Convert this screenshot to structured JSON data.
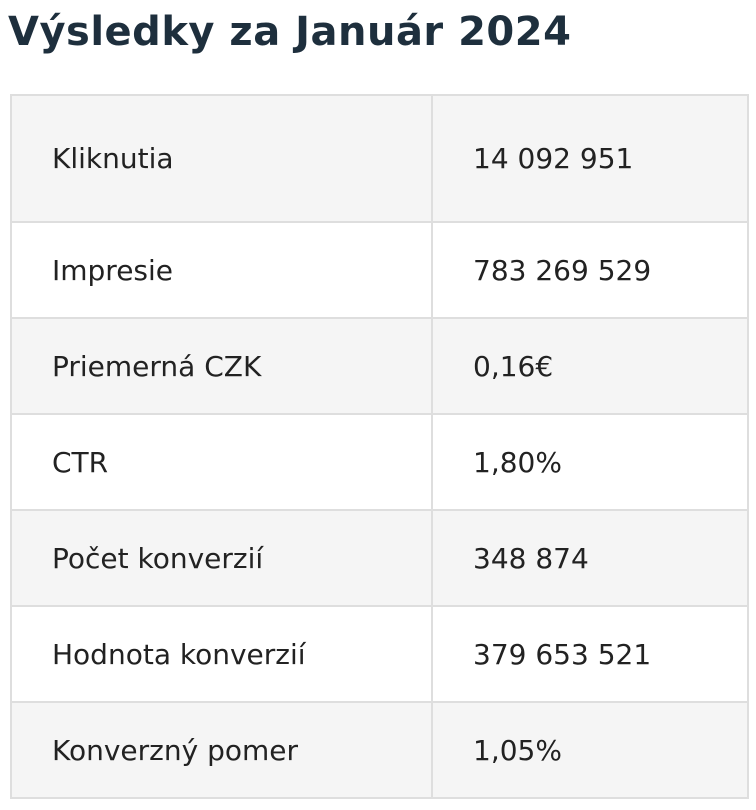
{
  "heading": {
    "title": "Výsledky za Január 2024"
  },
  "table": {
    "rows": [
      {
        "label": "Kliknutia",
        "value": "14 092 951"
      },
      {
        "label": "Impresie",
        "value": "783 269 529"
      },
      {
        "label": "Priemerná CZK",
        "value": "0,16€"
      },
      {
        "label": "CTR",
        "value": "1,80%"
      },
      {
        "label": "Počet konverzií",
        "value": "348 874"
      },
      {
        "label": "Hodnota konverzií",
        "value": "379 653 521"
      },
      {
        "label": "Konverzný pomer",
        "value": "1,05%"
      }
    ]
  },
  "colors": {
    "title": "#1e2f3d",
    "shaded_row": "#f5f5f5",
    "border": "#dedede"
  }
}
